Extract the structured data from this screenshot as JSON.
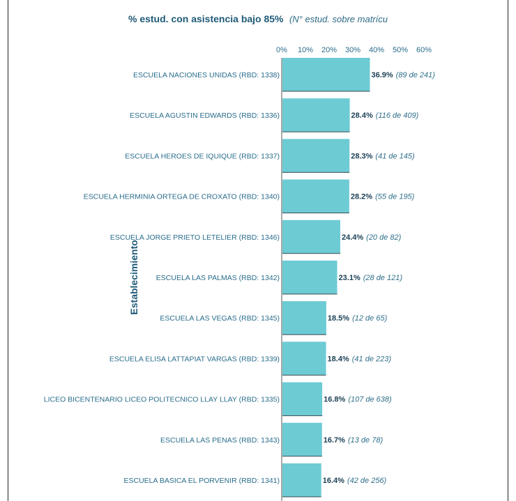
{
  "chart_data": {
    "type": "bar",
    "orientation": "horizontal",
    "title": "% estud. con asistencia bajo 85%",
    "subtitle": "(N° estud. sobre matrícu",
    "ylabel": "Establecimiento",
    "xlim": [
      0,
      60
    ],
    "x_ticks": [
      "0%",
      "10%",
      "20%",
      "30%",
      "40%",
      "50%",
      "60%"
    ],
    "bar_color": "#6dcbd4",
    "categories": [
      "ESCUELA NACIONES UNIDAS (RBD: 1338)",
      "ESCUELA AGUSTIN EDWARDS (RBD: 1336)",
      "ESCUELA HEROES DE IQUIQUE (RBD: 1337)",
      "ESCUELA HERMINIA ORTEGA DE CROXATO (RBD: 1340)",
      "ESCUELA JORGE PRIETO LETELIER (RBD: 1346)",
      "ESCUELA LAS PALMAS (RBD: 1342)",
      "ESCUELA LAS VEGAS (RBD: 1345)",
      "ESCUELA ELISA LATTAPIAT VARGAS (RBD: 1339)",
      "LICEO BICENTENARIO LICEO POLITECNICO LLAY LLAY (RBD: 1335)",
      "ESCUELA LAS PENAS (RBD: 1343)",
      "ESCUELA BASICA EL PORVENIR (RBD: 1341)"
    ],
    "values": [
      36.9,
      28.4,
      28.3,
      28.2,
      24.4,
      23.1,
      18.5,
      18.4,
      16.8,
      16.7,
      16.4
    ],
    "value_labels": [
      "36.9%",
      "28.4%",
      "28.3%",
      "28.2%",
      "24.4%",
      "23.1%",
      "18.5%",
      "18.4%",
      "16.8%",
      "16.7%",
      "16.4%"
    ],
    "count_labels": [
      "(89 de 241)",
      "(116 de 409)",
      "(41 de 145)",
      "(55 de 195)",
      "(20 de 82)",
      "(28 de 121)",
      "(12 de 65)",
      "(41 de 223)",
      "(107 de 638)",
      "(13 de 78)",
      "(42 de 256)"
    ]
  }
}
